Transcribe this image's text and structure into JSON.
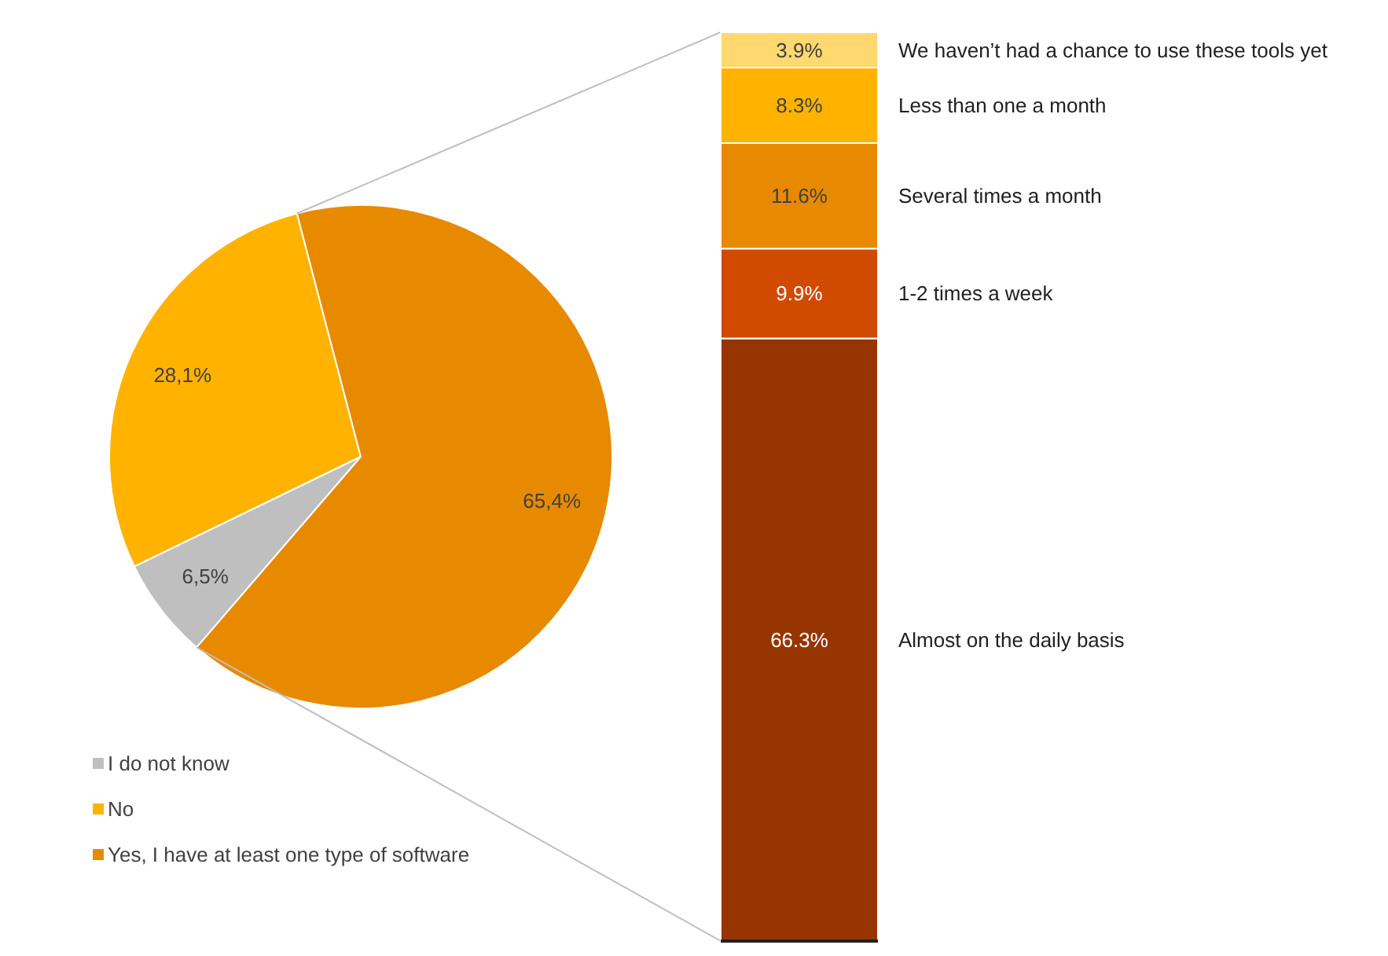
{
  "chart_data": [
    {
      "type": "pie",
      "categories": [
        "I do not know",
        "No",
        "Yes, I have at least one type of software"
      ],
      "values": [
        6.5,
        28.1,
        65.4
      ],
      "colors": [
        "#bfbfbf",
        "#ffb300",
        "#e88a00"
      ],
      "value_labels": [
        "6,5%",
        "28,1%",
        "65,4%"
      ],
      "legend": "bottom left"
    },
    {
      "type": "bar",
      "stacked": true,
      "categories": [
        null
      ],
      "series": [
        {
          "name": "Almost on the daily basis",
          "color": "#963500",
          "values": [
            66.3
          ],
          "value_labels": [
            "66.3%"
          ]
        },
        {
          "name": "1-2 times a week",
          "color": "#d04a00",
          "values": [
            9.9
          ],
          "value_labels": [
            "9.9%"
          ]
        },
        {
          "name": "Several times a month",
          "color": "#e88a00",
          "values": [
            11.6
          ],
          "value_labels": [
            "11.6%"
          ]
        },
        {
          "name": "Less than one a month",
          "color": "#ffb300",
          "values": [
            8.3
          ],
          "value_labels": [
            "8.3%"
          ]
        },
        {
          "name": "We haven’t had a chance to use these tools yet",
          "color": "#ffd970",
          "values": [
            3.9
          ],
          "value_labels": [
            "3.9%"
          ]
        }
      ]
    }
  ]
}
